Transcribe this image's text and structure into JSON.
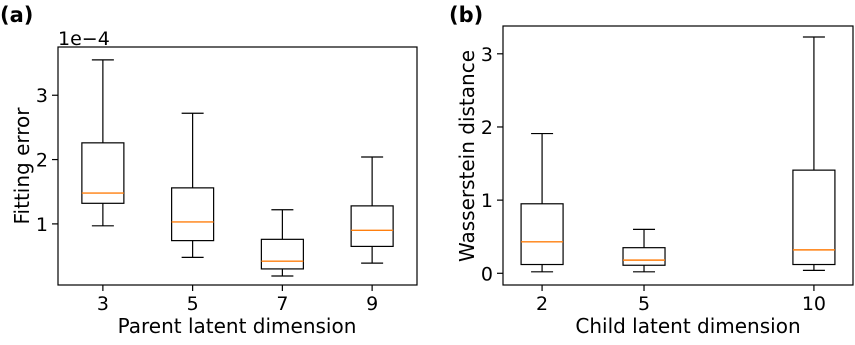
{
  "chart_data": [
    {
      "type": "box",
      "panel_label": "(a)",
      "xlabel": "Parent latent dimension",
      "ylabel": "Fitting error",
      "y_offset_text": "1e−4",
      "ylim": [
        0.05,
        3.75
      ],
      "y_ticks": [
        1,
        2,
        3
      ],
      "grid": false,
      "categories": [
        "3",
        "5",
        "7",
        "9"
      ],
      "boxes": [
        {
          "whisker_low": 0.97,
          "q1": 1.32,
          "median": 1.48,
          "q3": 2.26,
          "whisker_high": 3.55
        },
        {
          "whisker_low": 0.48,
          "q1": 0.74,
          "median": 1.03,
          "q3": 1.56,
          "whisker_high": 2.72
        },
        {
          "whisker_low": 0.19,
          "q1": 0.3,
          "median": 0.42,
          "q3": 0.76,
          "whisker_high": 1.22
        },
        {
          "whisker_low": 0.39,
          "q1": 0.65,
          "median": 0.9,
          "q3": 1.28,
          "whisker_high": 2.04
        }
      ]
    },
    {
      "type": "box",
      "panel_label": "(b)",
      "xlabel": "Child latent dimension",
      "ylabel": "Wasserstein distance",
      "ylim": [
        -0.16,
        3.38
      ],
      "y_ticks": [
        0,
        1,
        2,
        3
      ],
      "x_numeric": [
        2,
        5,
        10
      ],
      "xlim": [
        0.85,
        11.15
      ],
      "grid": false,
      "categories": [
        "2",
        "5",
        "10"
      ],
      "boxes": [
        {
          "whisker_low": 0.02,
          "q1": 0.12,
          "median": 0.43,
          "q3": 0.95,
          "whisker_high": 1.91
        },
        {
          "whisker_low": 0.02,
          "q1": 0.11,
          "median": 0.18,
          "q3": 0.35,
          "whisker_high": 0.6
        },
        {
          "whisker_low": 0.04,
          "q1": 0.12,
          "median": 0.32,
          "q3": 1.41,
          "whisker_high": 3.23
        }
      ]
    }
  ],
  "colors": {
    "box": "#000000",
    "median": "#ff7f0e"
  }
}
